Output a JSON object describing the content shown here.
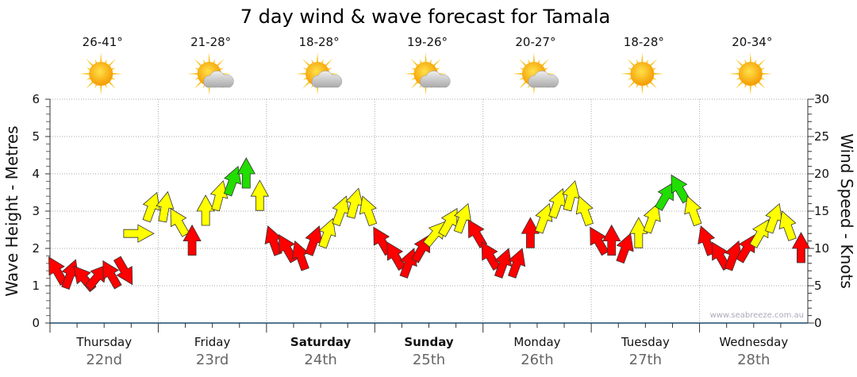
{
  "chart_data": {
    "type": "scatter",
    "title": "7 day wind & wave forecast for Tamala",
    "ylabel_left": "Wave Height - Metres",
    "ylabel_right": "Wind Speed - Knots",
    "ylim_left": [
      0,
      6
    ],
    "ylim_right": [
      0,
      30
    ],
    "yticks_left": [
      "0",
      "1",
      "2",
      "3",
      "4",
      "5",
      "6"
    ],
    "yticks_right": [
      "0",
      "5",
      "10",
      "15",
      "20",
      "25",
      "30"
    ],
    "grid": true,
    "watermark": "www.seabreeze.com.au",
    "days": [
      {
        "day": "Thursday",
        "date": "22nd",
        "temp": "26-41°",
        "icon": "sunny",
        "bold": false
      },
      {
        "day": "Friday",
        "date": "23rd",
        "temp": "21-28°",
        "icon": "partly-cloudy",
        "bold": false
      },
      {
        "day": "Saturday",
        "date": "24th",
        "temp": "18-28°",
        "icon": "partly-cloudy",
        "bold": true
      },
      {
        "day": "Sunday",
        "date": "25th",
        "temp": "19-26°",
        "icon": "partly-cloudy",
        "bold": true
      },
      {
        "day": "Monday",
        "date": "26th",
        "temp": "20-27°",
        "icon": "partly-cloudy",
        "bold": false
      },
      {
        "day": "Tuesday",
        "date": "27th",
        "temp": "18-28°",
        "icon": "sunny",
        "bold": false
      },
      {
        "day": "Wednesday",
        "date": "28th",
        "temp": "20-34°",
        "icon": "sunny",
        "bold": false
      }
    ],
    "colors": {
      "red": "#ff0000",
      "yellow": "#ffff00",
      "green": "#22dd00"
    },
    "wind_series_note": "3-hourly wind speed (knots), arrow heading (deg), colour class",
    "wind": [
      [
        7,
        "red",
        330
      ],
      [
        6.5,
        "red",
        20
      ],
      [
        6,
        "red",
        320
      ],
      [
        6.2,
        "red",
        40
      ],
      [
        6.5,
        "red",
        330
      ],
      [
        7,
        "red",
        150
      ],
      [
        12,
        "yellow",
        90
      ],
      [
        15.5,
        "yellow",
        20
      ],
      [
        15.5,
        "yellow",
        10
      ],
      [
        13.5,
        "yellow",
        330
      ],
      [
        11,
        "red",
        0
      ],
      [
        15,
        "yellow",
        0
      ],
      [
        17,
        "yellow",
        15
      ],
      [
        19,
        "green",
        20
      ],
      [
        20,
        "green",
        0
      ],
      [
        17,
        "yellow",
        0
      ],
      [
        11,
        "red",
        340
      ],
      [
        10,
        "red",
        330
      ],
      [
        9,
        "red",
        340
      ],
      [
        11,
        "red",
        20
      ],
      [
        12,
        "yellow",
        20
      ],
      [
        15,
        "yellow",
        20
      ],
      [
        16,
        "yellow",
        15
      ],
      [
        15,
        "yellow",
        340
      ],
      [
        11,
        "red",
        330
      ],
      [
        9,
        "red",
        330
      ],
      [
        8,
        "red",
        20
      ],
      [
        10,
        "red",
        30
      ],
      [
        12,
        "yellow",
        40
      ],
      [
        13.5,
        "yellow",
        30
      ],
      [
        14,
        "yellow",
        20
      ],
      [
        12,
        "red",
        330
      ],
      [
        9,
        "red",
        330
      ],
      [
        8,
        "red",
        20
      ],
      [
        8,
        "red",
        20
      ],
      [
        12,
        "red",
        0
      ],
      [
        14,
        "yellow",
        20
      ],
      [
        16,
        "yellow",
        20
      ],
      [
        17,
        "yellow",
        15
      ],
      [
        15,
        "yellow",
        340
      ],
      [
        11,
        "red",
        330
      ],
      [
        11,
        "red",
        0
      ],
      [
        10,
        "red",
        20
      ],
      [
        12,
        "yellow",
        0
      ],
      [
        14,
        "yellow",
        20
      ],
      [
        17,
        "green",
        30
      ],
      [
        18,
        "green",
        330
      ],
      [
        15,
        "yellow",
        340
      ],
      [
        11,
        "red",
        340
      ],
      [
        9,
        "red",
        330
      ],
      [
        9,
        "red",
        20
      ],
      [
        10,
        "red",
        30
      ],
      [
        12,
        "yellow",
        30
      ],
      [
        14,
        "yellow",
        20
      ],
      [
        13,
        "yellow",
        340
      ],
      [
        10,
        "red",
        0
      ]
    ]
  }
}
